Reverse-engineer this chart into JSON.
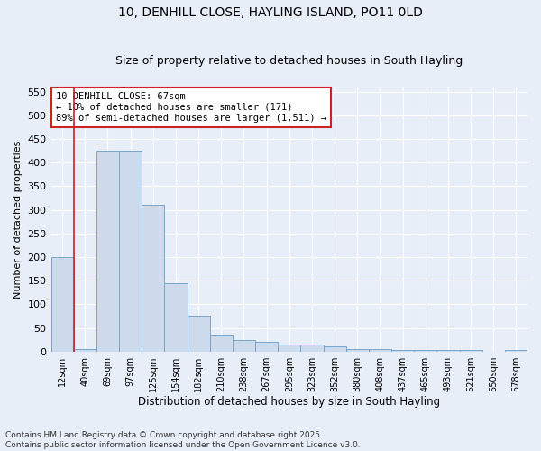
{
  "title1": "10, DENHILL CLOSE, HAYLING ISLAND, PO11 0LD",
  "title2": "Size of property relative to detached houses in South Hayling",
  "xlabel": "Distribution of detached houses by size in South Hayling",
  "ylabel": "Number of detached properties",
  "categories": [
    "12sqm",
    "40sqm",
    "69sqm",
    "97sqm",
    "125sqm",
    "154sqm",
    "182sqm",
    "210sqm",
    "238sqm",
    "267sqm",
    "295sqm",
    "323sqm",
    "352sqm",
    "380sqm",
    "408sqm",
    "437sqm",
    "465sqm",
    "493sqm",
    "521sqm",
    "550sqm",
    "578sqm"
  ],
  "values": [
    200,
    5,
    425,
    425,
    310,
    145,
    75,
    35,
    25,
    20,
    15,
    15,
    10,
    5,
    5,
    3,
    3,
    3,
    3,
    0,
    3
  ],
  "bar_color": "#ccdaeb",
  "bar_edge_color": "#7aa6cc",
  "vline_color": "#cc2222",
  "ylim": [
    0,
    560
  ],
  "yticks": [
    0,
    50,
    100,
    150,
    200,
    250,
    300,
    350,
    400,
    450,
    500,
    550
  ],
  "annotation_title": "10 DENHILL CLOSE: 67sqm",
  "annotation_line1": "← 10% of detached houses are smaller (171)",
  "annotation_line2": "89% of semi-detached houses are larger (1,511) →",
  "annotation_box_color": "#ffffff",
  "annotation_box_edge": "#cc2222",
  "footnote1": "Contains HM Land Registry data © Crown copyright and database right 2025.",
  "footnote2": "Contains public sector information licensed under the Open Government Licence v3.0.",
  "bg_color": "#e8eef8",
  "plot_bg_color": "#e8eef8",
  "title1_fontsize": 10,
  "title2_fontsize": 9,
  "xlabel_fontsize": 8.5,
  "ylabel_fontsize": 8,
  "xtick_fontsize": 7,
  "ytick_fontsize": 8,
  "footnote_fontsize": 6.5
}
